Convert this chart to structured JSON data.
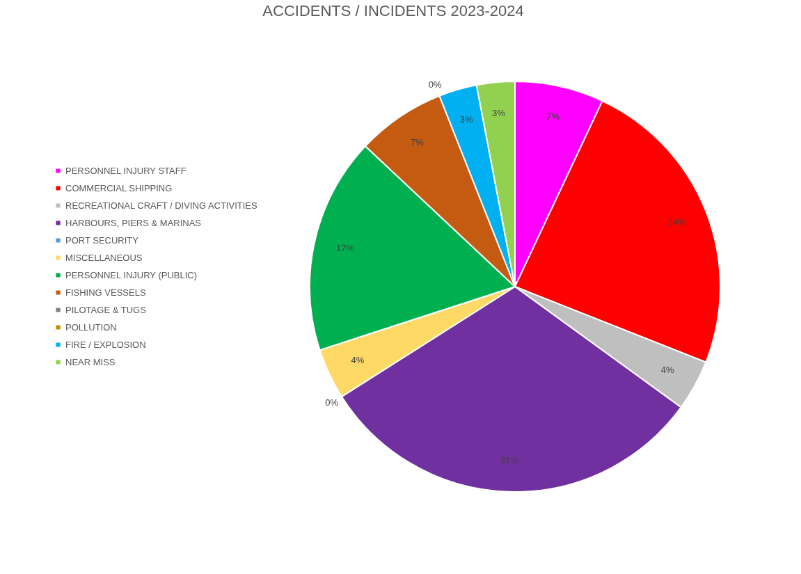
{
  "chart_data": {
    "type": "pie",
    "title": "ACCIDENTS / INCIDENTS 2023-2024",
    "categories": [
      "PERSONNEL INJURY STAFF",
      "COMMERCIAL SHIPPING",
      "RECREATIONAL CRAFT / DIVING ACTIVITIES",
      "HARBOURS, PIERS & MARINAS",
      "PORT SECURITY",
      "MISCELLANEOUS",
      "PERSONNEL INJURY (PUBLIC)",
      "FISHING VESSELS",
      "PILOTAGE & TUGS",
      "POLLUTION",
      "FIRE / EXPLOSION",
      "NEAR MISS"
    ],
    "values": [
      7,
      24,
      4,
      31,
      0,
      4,
      17,
      7,
      0,
      0,
      3,
      3
    ],
    "colors": [
      "#ff00ff",
      "#ff0000",
      "#bfbfbf",
      "#7030a0",
      "#5b9bd5",
      "#ffd966",
      "#00b050",
      "#c55a11",
      "#808080",
      "#bf9000",
      "#00b0f0",
      "#92d050"
    ],
    "value_labels": [
      "7%",
      "24%",
      "4%",
      "31%",
      "0%",
      "4%",
      "17%",
      "7%",
      "0%",
      null,
      "3%",
      "3%"
    ],
    "legend": "left"
  }
}
